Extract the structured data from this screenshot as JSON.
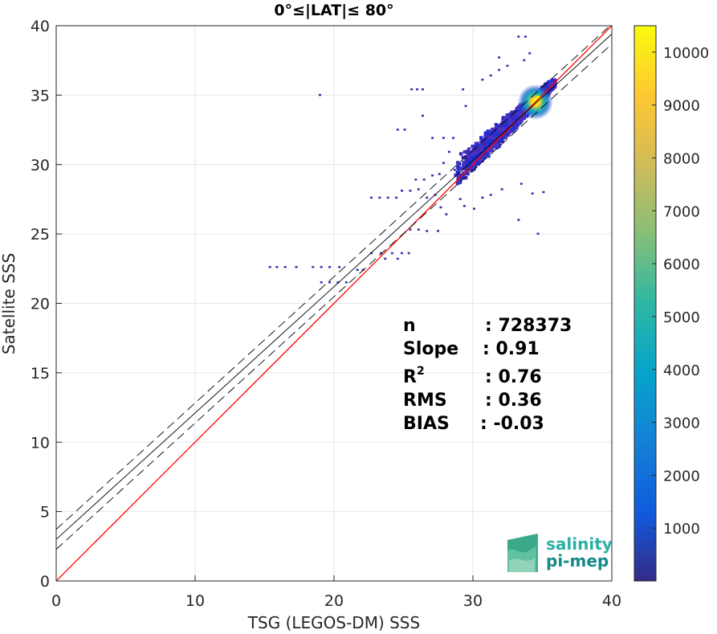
{
  "chart_data": {
    "type": "heatmap",
    "title": "0°≤|LAT|≤ 80°",
    "xlabel": "TSG (LEGOS-DM) SSS",
    "ylabel": "Satellite SSS",
    "xlim": [
      0,
      40
    ],
    "ylim": [
      0,
      40
    ],
    "xticks": [
      0,
      10,
      20,
      30,
      40
    ],
    "yticks": [
      0,
      5,
      10,
      15,
      20,
      25,
      30,
      35,
      40
    ],
    "grid": true,
    "colorbar": {
      "range": [
        0,
        10500
      ],
      "ticks": [
        1000,
        2000,
        3000,
        4000,
        5000,
        6000,
        7000,
        8000,
        9000,
        10000
      ],
      "colormap": "parula"
    },
    "lines": [
      {
        "kind": "identity",
        "color": "#ff0000",
        "x": [
          0,
          40
        ],
        "y": [
          0,
          40
        ]
      },
      {
        "kind": "regression",
        "color": "#000000",
        "style": "solid",
        "slope": 0.91,
        "intercept": 3.0
      },
      {
        "kind": "regression-upper",
        "color": "#000000",
        "style": "dashed",
        "slope": 0.91,
        "intercept": 3.72
      },
      {
        "kind": "regression-lower",
        "color": "#000000",
        "style": "dashed",
        "slope": 0.91,
        "intercept": 2.28
      }
    ],
    "density_core": {
      "x": 34.5,
      "y": 34.5,
      "peak_count": 10500
    },
    "stats": [
      {
        "label": "n",
        "value": ": 728373"
      },
      {
        "label": "Slope",
        "value": ": 0.91"
      },
      {
        "label": "R",
        "sup": "2",
        "value": ": 0.76"
      },
      {
        "label": "RMS",
        "value": ": 0.36"
      },
      {
        "label": "BIAS",
        "value": ": -0.03"
      }
    ],
    "scatter_outliers": [
      [
        15.3,
        22.6
      ],
      [
        15.8,
        22.6
      ],
      [
        16.4,
        22.6
      ],
      [
        17.2,
        22.6
      ],
      [
        18.4,
        22.6
      ],
      [
        19.0,
        22.6
      ],
      [
        19.6,
        22.6
      ],
      [
        20.3,
        22.6
      ],
      [
        19.0,
        21.5
      ],
      [
        19.6,
        21.5
      ],
      [
        20.2,
        21.5
      ],
      [
        20.8,
        21.5
      ],
      [
        21.6,
        22.4
      ],
      [
        22.0,
        22.4
      ],
      [
        22.6,
        23.6
      ],
      [
        23.3,
        23.6
      ],
      [
        24.1,
        23.6
      ],
      [
        24.8,
        23.6
      ],
      [
        25.3,
        23.6
      ],
      [
        23.6,
        23.2
      ],
      [
        24.5,
        23.2
      ],
      [
        25.4,
        25.3
      ],
      [
        26.0,
        25.3
      ],
      [
        26.6,
        25.2
      ],
      [
        27.4,
        25.2
      ],
      [
        28.0,
        26.4
      ],
      [
        22.6,
        27.6
      ],
      [
        23.2,
        27.6
      ],
      [
        23.8,
        27.6
      ],
      [
        24.4,
        27.6
      ],
      [
        24.8,
        28.1
      ],
      [
        25.4,
        28.1
      ],
      [
        26.0,
        28.2
      ],
      [
        26.6,
        27.6
      ],
      [
        27.2,
        27.8
      ],
      [
        27.6,
        26.9
      ],
      [
        25.8,
        28.9
      ],
      [
        26.4,
        28.9
      ],
      [
        27.0,
        29.2
      ],
      [
        27.5,
        29.3
      ],
      [
        27.8,
        30.1
      ],
      [
        28.2,
        30.9
      ],
      [
        28.6,
        29.6
      ],
      [
        29.0,
        27.5
      ],
      [
        29.3,
        27.0
      ],
      [
        30.0,
        26.8
      ],
      [
        30.6,
        27.6
      ],
      [
        31.2,
        27.8
      ],
      [
        32.0,
        28.2
      ],
      [
        33.4,
        28.6
      ],
      [
        34.2,
        27.9
      ],
      [
        35.0,
        28.0
      ],
      [
        33.2,
        26.0
      ],
      [
        34.6,
        25.0
      ],
      [
        24.5,
        32.5
      ],
      [
        25.0,
        32.5
      ],
      [
        26.3,
        33.5
      ],
      [
        27.0,
        31.9
      ],
      [
        27.8,
        31.9
      ],
      [
        28.5,
        31.9
      ],
      [
        25.5,
        35.4
      ],
      [
        25.9,
        35.4
      ],
      [
        26.3,
        35.4
      ],
      [
        29.2,
        35.4
      ],
      [
        30.6,
        36.1
      ],
      [
        31.2,
        36.4
      ],
      [
        31.8,
        36.8
      ],
      [
        32.4,
        37.1
      ],
      [
        31.8,
        37.7
      ],
      [
        33.6,
        37.5
      ],
      [
        34.0,
        38.0
      ],
      [
        33.2,
        39.2
      ],
      [
        33.7,
        39.2
      ],
      [
        18.9,
        35.0
      ],
      [
        29.4,
        34.2
      ]
    ]
  }
}
